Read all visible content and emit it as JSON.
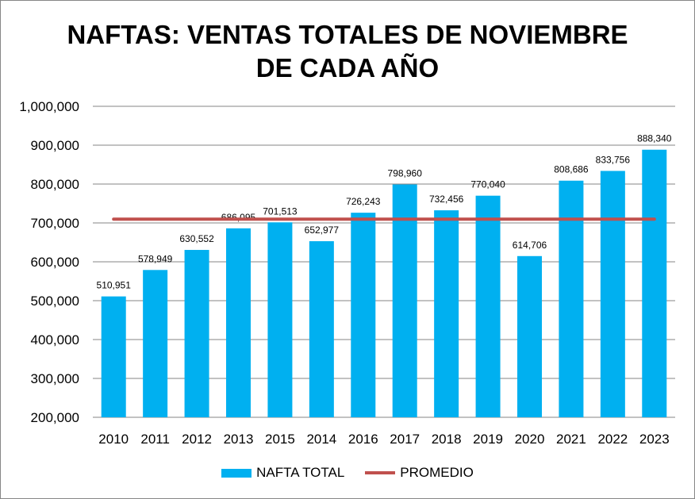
{
  "chart_data": {
    "type": "bar",
    "title_lines": [
      "NAFTAS: VENTAS TOTALES DE NOVIEMBRE",
      "DE CADA AÑO"
    ],
    "categories": [
      "2010",
      "2011",
      "2012",
      "2013",
      "2015",
      "2014",
      "2016",
      "2017",
      "2018",
      "2019",
      "2020",
      "2021",
      "2022",
      "2023"
    ],
    "series": [
      {
        "name": "NAFTA TOTAL",
        "type": "bar",
        "color": "#00b0f0",
        "values": [
          510951,
          578949,
          630552,
          686095,
          701513,
          652977,
          726243,
          798960,
          732456,
          770040,
          614706,
          808686,
          833756,
          888340
        ],
        "labels": [
          "510,951",
          "578,949",
          "630,552",
          "686,095",
          "701,513",
          "652,977",
          "726,243",
          "798,960",
          "732,456",
          "770,040",
          "614,706",
          "808,686",
          "833,756",
          "888,340"
        ]
      },
      {
        "name": "PROMEDIO",
        "type": "line",
        "color": "#c0504d",
        "value": 709587
      }
    ],
    "ylim": [
      200000,
      1000000
    ],
    "yticks": [
      "200,000",
      "300,000",
      "400,000",
      "500,000",
      "600,000",
      "700,000",
      "800,000",
      "900,000",
      "1,000,000"
    ],
    "ytick_values": [
      200000,
      300000,
      400000,
      500000,
      600000,
      700000,
      800000,
      900000,
      1000000
    ],
    "grid": true,
    "legend": "bottom"
  }
}
